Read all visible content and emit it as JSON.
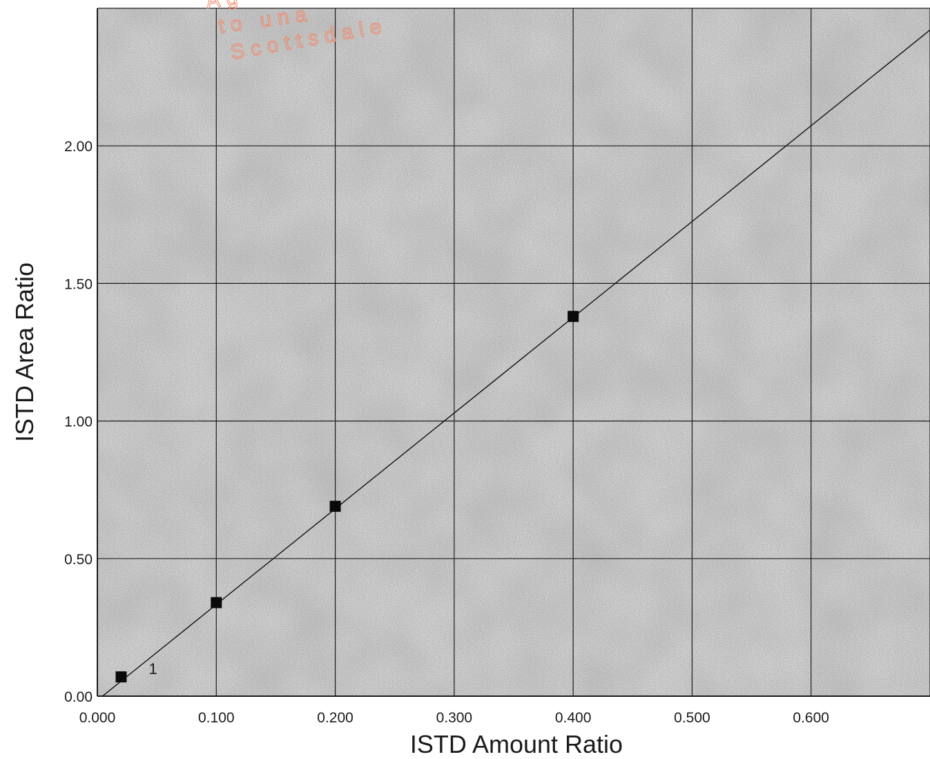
{
  "chart_data": {
    "type": "scatter",
    "title": "",
    "xlabel": "ISTD Amount Ratio",
    "ylabel": "ISTD Area Ratio",
    "xlim": [
      0.0,
      0.7
    ],
    "ylim": [
      0.0,
      2.5
    ],
    "x_ticks": [
      "0.000",
      "0.100",
      "0.200",
      "0.300",
      "0.400",
      "0.500",
      "0.600"
    ],
    "y_ticks": [
      "0.00",
      "0.50",
      "1.00",
      "1.50",
      "2.00"
    ],
    "grid": true,
    "series": [
      {
        "points": [
          {
            "x": 0.02,
            "y": 0.07
          },
          {
            "x": 0.1,
            "y": 0.34
          },
          {
            "x": 0.2,
            "y": 0.69
          },
          {
            "x": 0.4,
            "y": 1.38
          }
        ]
      }
    ],
    "fit_line": {
      "type": "linear",
      "slope": 3.48,
      "intercept": -0.015
    },
    "annotations": [
      {
        "text": "1",
        "x": 0.02,
        "y": 0.07
      }
    ],
    "watermark_lines": [
      "Ag",
      "to una",
      "Scottsdale"
    ]
  }
}
